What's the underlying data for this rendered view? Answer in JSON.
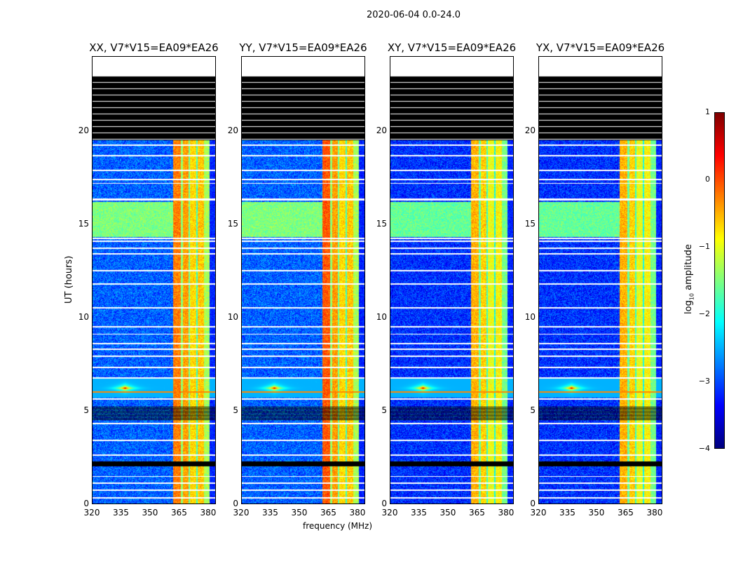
{
  "chart_data": {
    "type": "heatmap",
    "suptitle": "2020-06-04 0.0-24.0",
    "xlabel": "frequency (MHz)",
    "ylabel": "UT (hours)",
    "xlim": [
      320,
      384
    ],
    "ylim": [
      0,
      24
    ],
    "xticks": [
      "320",
      "335",
      "350",
      "365",
      "380"
    ],
    "xtick_values": [
      320,
      335,
      350,
      365,
      380
    ],
    "yticks": [
      "0",
      "5",
      "10",
      "15",
      "20"
    ],
    "ytick_values": [
      0,
      5,
      10,
      15,
      20
    ],
    "panels": [
      {
        "title": "XX, V7*V15=EA09*EA26"
      },
      {
        "title": "YY, V7*V15=EA09*EA26"
      },
      {
        "title": "XY, V7*V15=EA09*EA26"
      },
      {
        "title": "YX, V7*V15=EA09*EA26"
      }
    ],
    "colorbar": {
      "label_main": "log",
      "label_sub": "10",
      "label_rest": " amplitude",
      "colormap": "jet",
      "range": [
        -4,
        1
      ],
      "ticks": [
        "1",
        "0",
        "−1",
        "−2",
        "−3",
        "−4"
      ],
      "tick_values": [
        1,
        0,
        -1,
        -2,
        -3,
        -4
      ]
    },
    "features": {
      "background_level": -2.9,
      "rfi_band_mhz": [
        362,
        381
      ],
      "rfi_level": -0.8,
      "no_data_above_hours": 23.0,
      "flagged_black_hours": [
        [
          19.5,
          23.0
        ],
        [
          2.0,
          2.25
        ]
      ],
      "striped_hours": [
        4.5,
        5.2
      ],
      "green_band_hours": [
        14.3,
        16.2
      ],
      "spike": {
        "time_hours": 6.2,
        "freq_mhz": 337,
        "level": 0.8
      }
    }
  }
}
